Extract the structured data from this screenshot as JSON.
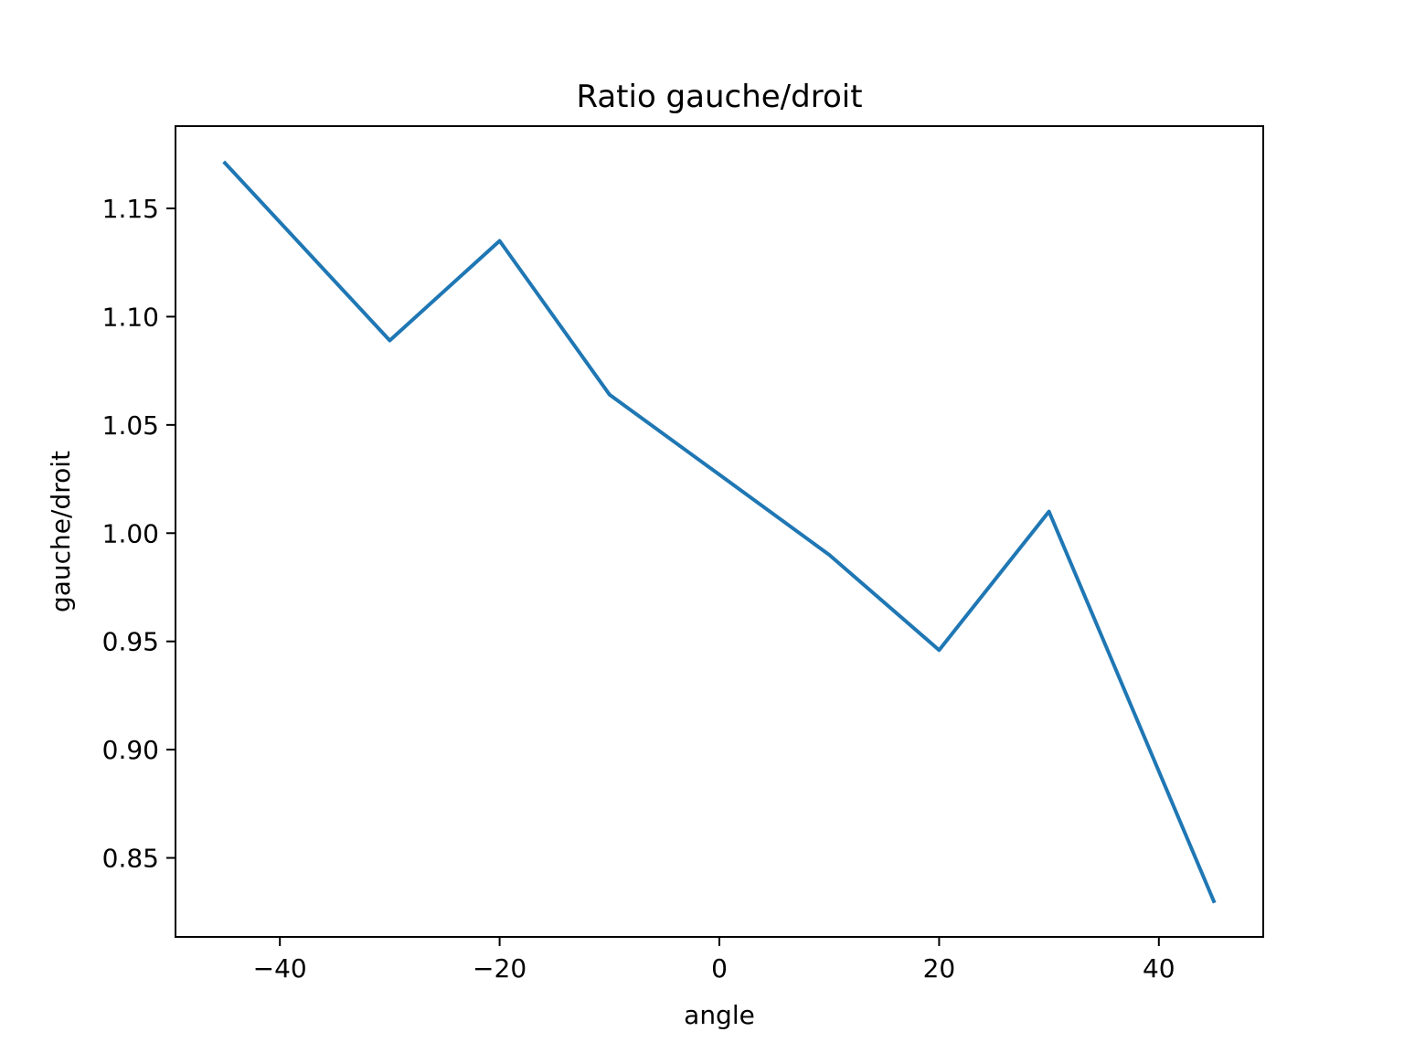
{
  "chart_data": {
    "type": "line",
    "title": "Ratio gauche/droit",
    "xlabel": "angle",
    "ylabel": "gauche/droit",
    "xlim": [
      -49.5,
      49.5
    ],
    "ylim": [
      0.8135,
      1.188
    ],
    "x_ticks": [
      -40,
      -20,
      0,
      20,
      40
    ],
    "x_tick_labels": [
      "−40",
      "−20",
      "0",
      "20",
      "40"
    ],
    "y_ticks": [
      0.85,
      0.9,
      0.95,
      1.0,
      1.05,
      1.1,
      1.15
    ],
    "y_tick_labels": [
      "0.85",
      "0.90",
      "0.95",
      "1.00",
      "1.05",
      "1.10",
      "1.15"
    ],
    "grid": false,
    "series": [
      {
        "color": "#1f77b4",
        "x": [
          -45,
          -30,
          -20,
          -10,
          0,
          10,
          20,
          30,
          45
        ],
        "y": [
          1.171,
          1.089,
          1.135,
          1.064,
          1.027,
          0.99,
          0.946,
          1.01,
          0.83
        ]
      }
    ]
  }
}
